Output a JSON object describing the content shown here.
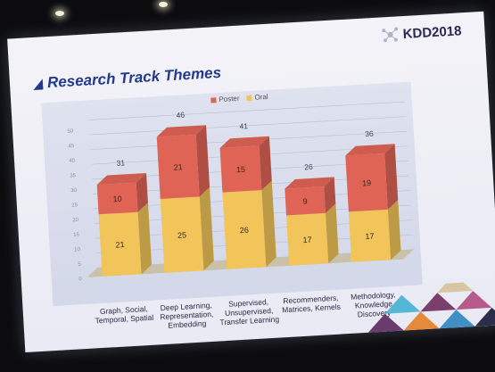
{
  "slide": {
    "logo_text": "KDD2018",
    "title": "Research Track Themes"
  },
  "chart_data": {
    "type": "bar",
    "title": "Research Track Themes",
    "stacked": true,
    "categories": [
      [
        "Graph, Social,",
        "Temporal, Spatial"
      ],
      [
        "Deep Learning,",
        "Representation,",
        "Embedding"
      ],
      [
        "Supervised,",
        "Unsupervised,",
        "Transfer Learning"
      ],
      [
        "Recommenders,",
        "Matrices, Kernels"
      ],
      [
        "Methodology,",
        "Knowledge",
        "Discovery"
      ]
    ],
    "series": [
      {
        "name": "Oral",
        "values": [
          21,
          25,
          26,
          17,
          17
        ],
        "color": "#f2c55a"
      },
      {
        "name": "Poster",
        "values": [
          10,
          21,
          15,
          9,
          19
        ],
        "color": "#e06456"
      }
    ],
    "totals": [
      31,
      46,
      41,
      26,
      36
    ],
    "ylim": [
      0,
      50
    ],
    "yticks": [
      0,
      5,
      10,
      15,
      20,
      25,
      30,
      35,
      40,
      45,
      50
    ],
    "legend_position": "top",
    "grid": true
  }
}
